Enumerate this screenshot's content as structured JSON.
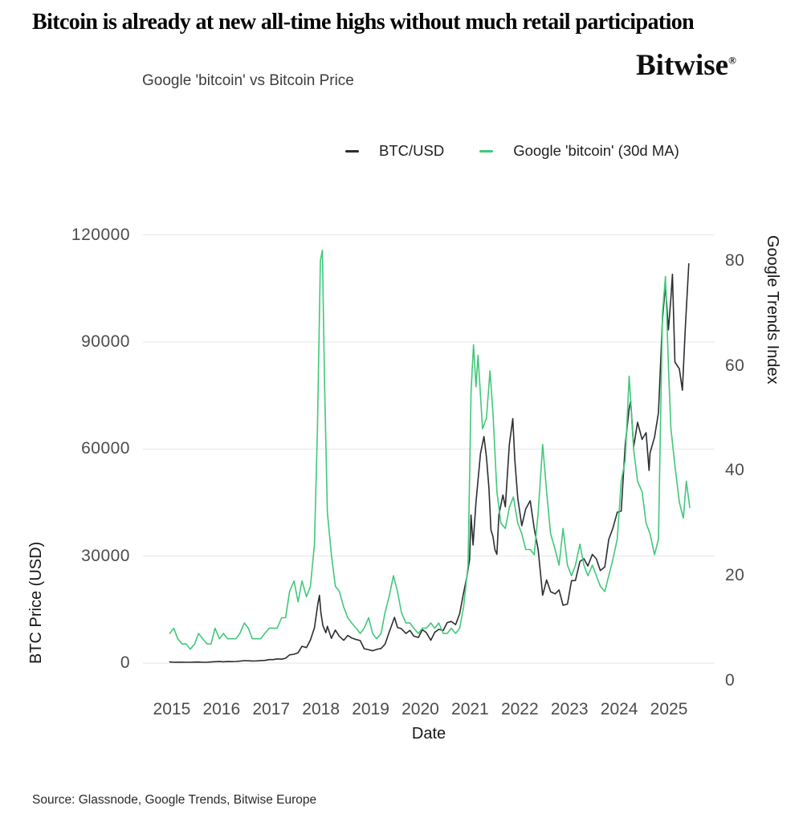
{
  "headline": "Bitcoin is already at new all-time highs without much retail participation",
  "logo": {
    "text": "Bitwise",
    "mark": "®"
  },
  "chart": {
    "title": "Google 'bitcoin' vs Bitcoin Price",
    "y_left_label": "BTC Price (USD)",
    "y_right_label": "Google Trends Index",
    "x_label": "Date"
  },
  "legend": {
    "items": [
      {
        "label": "BTC/USD",
        "color": "#2b2e31"
      },
      {
        "label": "Google 'bitcoin' (30d MA)",
        "color": "#41c87c"
      }
    ]
  },
  "source": "Source: Glassnode, Google Trends, Bitwise Europe",
  "colors": {
    "background": "#ffffff",
    "gridline": "#e4e4e4",
    "price_line": "#2b2e31",
    "trends_line": "#41c87c",
    "tick_text": "#4c4c4c"
  },
  "chart_data": {
    "type": "line",
    "title": "Google 'bitcoin' vs Bitcoin Price",
    "grid": "horizontal",
    "legend_position": "top",
    "x_axis": {
      "label": "Date",
      "range": [
        2014.42,
        2025.92
      ],
      "ticks": [
        2015,
        2016,
        2017,
        2018,
        2019,
        2020,
        2021,
        2022,
        2023,
        2024,
        2025
      ]
    },
    "y_left": {
      "label": "BTC Price (USD)",
      "range": [
        0,
        124000
      ],
      "ticks": [
        0,
        30000,
        60000,
        90000,
        120000
      ]
    },
    "y_right": {
      "label": "Google Trends Index",
      "range": [
        0,
        83
      ],
      "ticks": [
        0,
        20,
        40,
        60,
        80
      ]
    },
    "series": [
      {
        "name": "BTC/USD",
        "axis": "left",
        "color": "#2b2e31",
        "points": [
          [
            2014.96,
            320
          ],
          [
            2015.04,
            215
          ],
          [
            2015.12,
            255
          ],
          [
            2015.21,
            245
          ],
          [
            2015.29,
            235
          ],
          [
            2015.37,
            230
          ],
          [
            2015.46,
            265
          ],
          [
            2015.54,
            285
          ],
          [
            2015.62,
            230
          ],
          [
            2015.71,
            236
          ],
          [
            2015.79,
            310
          ],
          [
            2015.87,
            377
          ],
          [
            2015.96,
            430
          ],
          [
            2016.04,
            370
          ],
          [
            2016.12,
            437
          ],
          [
            2016.21,
            415
          ],
          [
            2016.29,
            450
          ],
          [
            2016.37,
            530
          ],
          [
            2016.46,
            670
          ],
          [
            2016.54,
            625
          ],
          [
            2016.62,
            575
          ],
          [
            2016.71,
            610
          ],
          [
            2016.79,
            700
          ],
          [
            2016.87,
            745
          ],
          [
            2016.96,
            960
          ],
          [
            2017.04,
            970
          ],
          [
            2017.12,
            1180
          ],
          [
            2017.21,
            1080
          ],
          [
            2017.29,
            1350
          ],
          [
            2017.37,
            2300
          ],
          [
            2017.46,
            2480
          ],
          [
            2017.54,
            2875
          ],
          [
            2017.62,
            4700
          ],
          [
            2017.71,
            4340
          ],
          [
            2017.79,
            6450
          ],
          [
            2017.87,
            9900
          ],
          [
            2017.94,
            16700
          ],
          [
            2017.97,
            19000
          ],
          [
            2018.0,
            14100
          ],
          [
            2018.04,
            10500
          ],
          [
            2018.1,
            8500
          ],
          [
            2018.13,
            10300
          ],
          [
            2018.21,
            6930
          ],
          [
            2018.29,
            9240
          ],
          [
            2018.37,
            7500
          ],
          [
            2018.46,
            6400
          ],
          [
            2018.54,
            7750
          ],
          [
            2018.62,
            7020
          ],
          [
            2018.71,
            6600
          ],
          [
            2018.79,
            6300
          ],
          [
            2018.87,
            4020
          ],
          [
            2018.96,
            3740
          ],
          [
            2019.04,
            3440
          ],
          [
            2019.12,
            3820
          ],
          [
            2019.21,
            4100
          ],
          [
            2019.29,
            5300
          ],
          [
            2019.37,
            8550
          ],
          [
            2019.48,
            12800
          ],
          [
            2019.54,
            10000
          ],
          [
            2019.62,
            9600
          ],
          [
            2019.71,
            8300
          ],
          [
            2019.79,
            9150
          ],
          [
            2019.87,
            7550
          ],
          [
            2019.96,
            7190
          ],
          [
            2020.04,
            9350
          ],
          [
            2020.12,
            8550
          ],
          [
            2020.21,
            6400
          ],
          [
            2020.29,
            8620
          ],
          [
            2020.37,
            9450
          ],
          [
            2020.46,
            9140
          ],
          [
            2020.54,
            11350
          ],
          [
            2020.62,
            11650
          ],
          [
            2020.71,
            10780
          ],
          [
            2020.79,
            13800
          ],
          [
            2020.87,
            19700
          ],
          [
            2020.93,
            23800
          ],
          [
            2020.99,
            29000
          ],
          [
            2021.02,
            41500
          ],
          [
            2021.06,
            33100
          ],
          [
            2021.12,
            45200
          ],
          [
            2021.21,
            58800
          ],
          [
            2021.28,
            63500
          ],
          [
            2021.33,
            57700
          ],
          [
            2021.38,
            49000
          ],
          [
            2021.42,
            37300
          ],
          [
            2021.46,
            35500
          ],
          [
            2021.5,
            31800
          ],
          [
            2021.54,
            30500
          ],
          [
            2021.58,
            41600
          ],
          [
            2021.66,
            47100
          ],
          [
            2021.71,
            43800
          ],
          [
            2021.79,
            61300
          ],
          [
            2021.86,
            68500
          ],
          [
            2021.9,
            57000
          ],
          [
            2021.96,
            46200
          ],
          [
            2022.04,
            38500
          ],
          [
            2022.12,
            43200
          ],
          [
            2022.21,
            45500
          ],
          [
            2022.29,
            37700
          ],
          [
            2022.37,
            31800
          ],
          [
            2022.46,
            19000
          ],
          [
            2022.54,
            23300
          ],
          [
            2022.62,
            20000
          ],
          [
            2022.71,
            19400
          ],
          [
            2022.79,
            20500
          ],
          [
            2022.87,
            16200
          ],
          [
            2022.96,
            16550
          ],
          [
            2023.04,
            23100
          ],
          [
            2023.12,
            23150
          ],
          [
            2023.21,
            28500
          ],
          [
            2023.29,
            29250
          ],
          [
            2023.37,
            27200
          ],
          [
            2023.46,
            30480
          ],
          [
            2023.54,
            29230
          ],
          [
            2023.62,
            25930
          ],
          [
            2023.71,
            26970
          ],
          [
            2023.79,
            34650
          ],
          [
            2023.87,
            37700
          ],
          [
            2023.96,
            42270
          ],
          [
            2024.04,
            42600
          ],
          [
            2024.12,
            61200
          ],
          [
            2024.2,
            71300
          ],
          [
            2024.23,
            73500
          ],
          [
            2024.29,
            60600
          ],
          [
            2024.37,
            67500
          ],
          [
            2024.46,
            62700
          ],
          [
            2024.54,
            64600
          ],
          [
            2024.6,
            54000
          ],
          [
            2024.62,
            58900
          ],
          [
            2024.71,
            63300
          ],
          [
            2024.79,
            70200
          ],
          [
            2024.87,
            96400
          ],
          [
            2024.93,
            106000
          ],
          [
            2024.99,
            93400
          ],
          [
            2025.04,
            102400
          ],
          [
            2025.07,
            109000
          ],
          [
            2025.12,
            84400
          ],
          [
            2025.21,
            82500
          ],
          [
            2025.27,
            76500
          ],
          [
            2025.33,
            94200
          ],
          [
            2025.4,
            111970
          ]
        ]
      },
      {
        "name": "Google 'bitcoin' (30d MA)",
        "axis": "right",
        "color": "#41c87c",
        "points": [
          [
            2014.96,
            9
          ],
          [
            2015.04,
            10
          ],
          [
            2015.12,
            8
          ],
          [
            2015.21,
            7
          ],
          [
            2015.29,
            7
          ],
          [
            2015.37,
            6
          ],
          [
            2015.46,
            7
          ],
          [
            2015.54,
            9
          ],
          [
            2015.62,
            8
          ],
          [
            2015.71,
            7
          ],
          [
            2015.79,
            7
          ],
          [
            2015.87,
            10
          ],
          [
            2015.96,
            8
          ],
          [
            2016.04,
            9
          ],
          [
            2016.12,
            8
          ],
          [
            2016.21,
            8
          ],
          [
            2016.29,
            8
          ],
          [
            2016.37,
            9
          ],
          [
            2016.46,
            11
          ],
          [
            2016.54,
            10
          ],
          [
            2016.62,
            8
          ],
          [
            2016.71,
            8
          ],
          [
            2016.79,
            8
          ],
          [
            2016.87,
            9
          ],
          [
            2016.96,
            10
          ],
          [
            2017.04,
            10
          ],
          [
            2017.12,
            10
          ],
          [
            2017.21,
            12
          ],
          [
            2017.29,
            12
          ],
          [
            2017.37,
            17
          ],
          [
            2017.46,
            19
          ],
          [
            2017.54,
            15
          ],
          [
            2017.62,
            19
          ],
          [
            2017.71,
            16
          ],
          [
            2017.79,
            18
          ],
          [
            2017.87,
            26
          ],
          [
            2017.93,
            48
          ],
          [
            2017.99,
            80
          ],
          [
            2018.03,
            82
          ],
          [
            2018.07,
            58
          ],
          [
            2018.13,
            32
          ],
          [
            2018.21,
            24
          ],
          [
            2018.29,
            18
          ],
          [
            2018.37,
            17
          ],
          [
            2018.46,
            14
          ],
          [
            2018.54,
            12
          ],
          [
            2018.62,
            11
          ],
          [
            2018.71,
            10
          ],
          [
            2018.79,
            9
          ],
          [
            2018.87,
            10
          ],
          [
            2018.96,
            12
          ],
          [
            2019.04,
            9
          ],
          [
            2019.12,
            8
          ],
          [
            2019.21,
            9
          ],
          [
            2019.29,
            13
          ],
          [
            2019.37,
            16
          ],
          [
            2019.46,
            20
          ],
          [
            2019.54,
            17
          ],
          [
            2019.62,
            13
          ],
          [
            2019.71,
            11
          ],
          [
            2019.79,
            11
          ],
          [
            2019.87,
            10
          ],
          [
            2019.96,
            9
          ],
          [
            2020.04,
            10
          ],
          [
            2020.12,
            10
          ],
          [
            2020.21,
            11
          ],
          [
            2020.29,
            10
          ],
          [
            2020.37,
            11
          ],
          [
            2020.46,
            9
          ],
          [
            2020.54,
            9
          ],
          [
            2020.62,
            10
          ],
          [
            2020.71,
            9
          ],
          [
            2020.79,
            10
          ],
          [
            2020.87,
            14
          ],
          [
            2020.96,
            22
          ],
          [
            2021.02,
            55
          ],
          [
            2021.07,
            64
          ],
          [
            2021.12,
            56
          ],
          [
            2021.16,
            62
          ],
          [
            2021.25,
            48
          ],
          [
            2021.33,
            50
          ],
          [
            2021.4,
            59
          ],
          [
            2021.46,
            51
          ],
          [
            2021.54,
            36
          ],
          [
            2021.62,
            30
          ],
          [
            2021.71,
            29
          ],
          [
            2021.79,
            33
          ],
          [
            2021.87,
            35
          ],
          [
            2021.96,
            30
          ],
          [
            2022.04,
            28
          ],
          [
            2022.12,
            25
          ],
          [
            2022.21,
            25
          ],
          [
            2022.29,
            24
          ],
          [
            2022.37,
            32
          ],
          [
            2022.46,
            45
          ],
          [
            2022.54,
            36
          ],
          [
            2022.62,
            28
          ],
          [
            2022.71,
            25
          ],
          [
            2022.79,
            22
          ],
          [
            2022.87,
            29
          ],
          [
            2022.96,
            22
          ],
          [
            2023.04,
            20
          ],
          [
            2023.12,
            22
          ],
          [
            2023.21,
            26
          ],
          [
            2023.29,
            22
          ],
          [
            2023.37,
            20
          ],
          [
            2023.46,
            22
          ],
          [
            2023.54,
            20
          ],
          [
            2023.62,
            18
          ],
          [
            2023.71,
            17
          ],
          [
            2023.79,
            20
          ],
          [
            2023.87,
            23
          ],
          [
            2023.96,
            27
          ],
          [
            2024.04,
            38
          ],
          [
            2024.12,
            42
          ],
          [
            2024.2,
            58
          ],
          [
            2024.29,
            44
          ],
          [
            2024.37,
            38
          ],
          [
            2024.46,
            36
          ],
          [
            2024.54,
            30
          ],
          [
            2024.62,
            28
          ],
          [
            2024.71,
            24
          ],
          [
            2024.79,
            27
          ],
          [
            2024.87,
            70
          ],
          [
            2024.93,
            77
          ],
          [
            2024.99,
            60
          ],
          [
            2025.04,
            48
          ],
          [
            2025.12,
            41
          ],
          [
            2025.21,
            34
          ],
          [
            2025.29,
            31
          ],
          [
            2025.35,
            38
          ],
          [
            2025.42,
            33
          ]
        ]
      }
    ]
  }
}
